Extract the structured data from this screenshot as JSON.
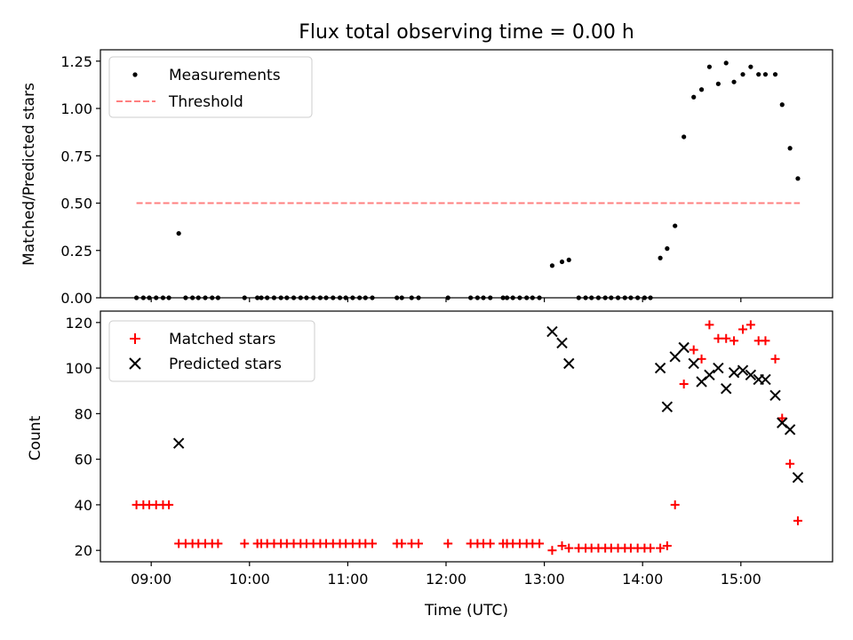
{
  "chart_data": [
    {
      "type": "scatter",
      "title": "Flux total observing time = 0.00 h",
      "xlabel": "",
      "ylabel": "Matched/Predicted stars",
      "xlim_hours": [
        8.483,
        15.933
      ],
      "ylim": [
        0,
        1.31
      ],
      "xticks": [
        {
          "v": 9,
          "label": "09:00"
        },
        {
          "v": 10,
          "label": "10:00"
        },
        {
          "v": 11,
          "label": "11:00"
        },
        {
          "v": 12,
          "label": "12:00"
        },
        {
          "v": 13,
          "label": "13:00"
        },
        {
          "v": 14,
          "label": "14:00"
        },
        {
          "v": 15,
          "label": "15:00"
        }
      ],
      "yticks": [
        {
          "v": 0,
          "label": "0.00"
        },
        {
          "v": 0.25,
          "label": "0.25"
        },
        {
          "v": 0.5,
          "label": "0.50"
        },
        {
          "v": 0.75,
          "label": "0.75"
        },
        {
          "v": 1.0,
          "label": "1.00"
        },
        {
          "v": 1.25,
          "label": "1.25"
        }
      ],
      "legend_location": "upper-left",
      "legend": [
        {
          "label": "Measurements",
          "marker": "dot",
          "color": "#000000"
        },
        {
          "label": "Threshold",
          "marker": "dashed-line",
          "color": "#ff8080"
        }
      ],
      "threshold": {
        "y": 0.5,
        "x": [
          8.85,
          15.6
        ]
      },
      "series": [
        {
          "name": "Measurements",
          "x": [
            8.85,
            8.92,
            8.98,
            9.05,
            9.12,
            9.18,
            9.28,
            9.35,
            9.42,
            9.48,
            9.55,
            9.62,
            9.68,
            9.95,
            10.08,
            10.12,
            10.18,
            10.25,
            10.32,
            10.38,
            10.45,
            10.52,
            10.58,
            10.65,
            10.72,
            10.78,
            10.85,
            10.92,
            10.98,
            11.05,
            11.12,
            11.18,
            11.25,
            11.5,
            11.55,
            11.65,
            11.72,
            12.02,
            12.25,
            12.32,
            12.38,
            12.45,
            12.58,
            12.62,
            12.68,
            12.75,
            12.82,
            12.88,
            12.95,
            13.08,
            13.18,
            13.25,
            13.35,
            13.42,
            13.48,
            13.55,
            13.62,
            13.68,
            13.75,
            13.82,
            13.88,
            13.95,
            14.02,
            14.08,
            14.18,
            14.25,
            14.33,
            14.42,
            14.52,
            14.6,
            14.68,
            14.77,
            14.85,
            14.93,
            15.02,
            15.1,
            15.18,
            15.25,
            15.35,
            15.42,
            15.5,
            15.58
          ],
          "y": [
            0,
            0,
            0,
            0,
            0,
            0,
            0.34,
            0,
            0,
            0,
            0,
            0,
            0,
            0,
            0,
            0,
            0,
            0,
            0,
            0,
            0,
            0,
            0,
            0,
            0,
            0,
            0,
            0,
            0,
            0,
            0,
            0,
            0,
            0,
            0,
            0,
            0,
            0,
            0,
            0,
            0,
            0,
            0,
            0,
            0,
            0,
            0,
            0,
            0,
            0.17,
            0.19,
            0.2,
            0,
            0,
            0,
            0,
            0,
            0,
            0,
            0,
            0,
            0,
            0,
            0,
            0.21,
            0.26,
            0.38,
            0.85,
            1.06,
            1.1,
            1.22,
            1.13,
            1.24,
            1.14,
            1.18,
            1.22,
            1.18,
            1.18,
            1.18,
            1.02,
            0.79,
            0.63
          ]
        }
      ]
    },
    {
      "type": "scatter",
      "title": "",
      "xlabel": "Time (UTC)",
      "ylabel": "Count",
      "xlim_hours": [
        8.483,
        15.933
      ],
      "ylim": [
        15,
        125
      ],
      "xticks": [
        {
          "v": 9,
          "label": "09:00"
        },
        {
          "v": 10,
          "label": "10:00"
        },
        {
          "v": 11,
          "label": "11:00"
        },
        {
          "v": 12,
          "label": "12:00"
        },
        {
          "v": 13,
          "label": "13:00"
        },
        {
          "v": 14,
          "label": "14:00"
        },
        {
          "v": 15,
          "label": "15:00"
        }
      ],
      "yticks": [
        {
          "v": 20,
          "label": "20"
        },
        {
          "v": 40,
          "label": "40"
        },
        {
          "v": 60,
          "label": "60"
        },
        {
          "v": 80,
          "label": "80"
        },
        {
          "v": 100,
          "label": "100"
        },
        {
          "v": 120,
          "label": "120"
        }
      ],
      "legend_location": "upper-left",
      "legend": [
        {
          "label": "Matched stars",
          "marker": "plus",
          "color": "#ff0000"
        },
        {
          "label": "Predicted stars",
          "marker": "x",
          "color": "#000000"
        }
      ],
      "series": [
        {
          "name": "Matched stars",
          "x": [
            8.85,
            8.92,
            8.98,
            9.05,
            9.12,
            9.18,
            9.28,
            9.35,
            9.42,
            9.48,
            9.55,
            9.62,
            9.68,
            9.95,
            10.08,
            10.12,
            10.18,
            10.25,
            10.32,
            10.38,
            10.45,
            10.52,
            10.58,
            10.65,
            10.72,
            10.78,
            10.85,
            10.92,
            10.98,
            11.05,
            11.12,
            11.18,
            11.25,
            11.5,
            11.55,
            11.65,
            11.72,
            12.02,
            12.25,
            12.32,
            12.38,
            12.45,
            12.58,
            12.62,
            12.68,
            12.75,
            12.82,
            12.88,
            12.95,
            13.08,
            13.18,
            13.25,
            13.35,
            13.42,
            13.48,
            13.55,
            13.62,
            13.68,
            13.75,
            13.82,
            13.88,
            13.95,
            14.02,
            14.08,
            14.18,
            14.25,
            14.33,
            14.42,
            14.52,
            14.6,
            14.68,
            14.77,
            14.85,
            14.93,
            15.02,
            15.1,
            15.18,
            15.25,
            15.35,
            15.42,
            15.5,
            15.58
          ],
          "y": [
            40,
            40,
            40,
            40,
            40,
            40,
            23,
            23,
            23,
            23,
            23,
            23,
            23,
            23,
            23,
            23,
            23,
            23,
            23,
            23,
            23,
            23,
            23,
            23,
            23,
            23,
            23,
            23,
            23,
            23,
            23,
            23,
            23,
            23,
            23,
            23,
            23,
            23,
            23,
            23,
            23,
            23,
            23,
            23,
            23,
            23,
            23,
            23,
            23,
            20,
            22,
            21,
            21,
            21,
            21,
            21,
            21,
            21,
            21,
            21,
            21,
            21,
            21,
            21,
            21,
            22,
            40,
            93,
            108,
            104,
            119,
            113,
            113,
            112,
            117,
            119,
            112,
            112,
            104,
            78,
            58,
            33
          ]
        },
        {
          "name": "Predicted stars",
          "x": [
            9.28,
            13.08,
            13.18,
            13.25,
            14.18,
            14.25,
            14.33,
            14.42,
            14.52,
            14.6,
            14.68,
            14.77,
            14.85,
            14.93,
            15.02,
            15.1,
            15.18,
            15.25,
            15.35,
            15.42,
            15.5,
            15.58
          ],
          "y": [
            67,
            116,
            111,
            102,
            100,
            83,
            105,
            109,
            102,
            94,
            97,
            100,
            91,
            98,
            99,
            97,
            95,
            95,
            88,
            76,
            73,
            52
          ]
        }
      ]
    }
  ]
}
